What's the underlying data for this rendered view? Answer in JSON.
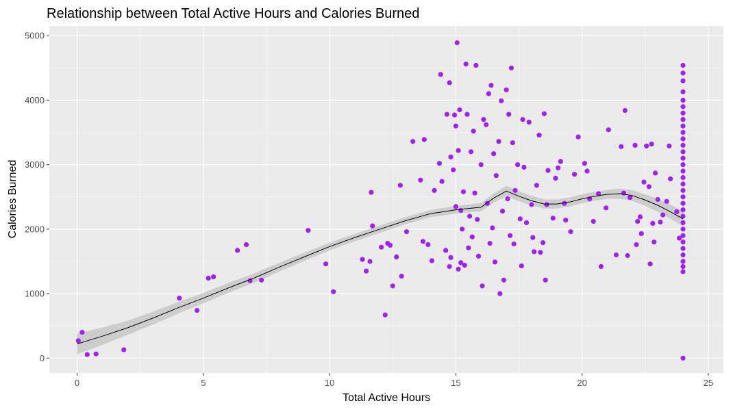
{
  "chart_data": {
    "type": "scatter",
    "title": "Relationship between Total Active Hours and Calories Burned",
    "xlabel": "Total Active Hours",
    "ylabel": "Calories Burned",
    "xlim": [
      -1.1,
      25.6
    ],
    "ylim": [
      -230,
      5150
    ],
    "x_ticks": [
      0,
      5,
      10,
      15,
      20,
      25
    ],
    "y_ticks": [
      0,
      1000,
      2000,
      3000,
      4000,
      5000
    ],
    "grid": true,
    "legend": "none",
    "point_color": "#a020f0",
    "panel_color": "#ebebeb",
    "smooth_color": "#000000",
    "band_color": "#c8c8c8",
    "points": [
      [
        0.05,
        270
      ],
      [
        0.2,
        400
      ],
      [
        0.4,
        55
      ],
      [
        0.75,
        65
      ],
      [
        1.85,
        130
      ],
      [
        4.05,
        930
      ],
      [
        4.75,
        740
      ],
      [
        5.2,
        1240
      ],
      [
        5.4,
        1260
      ],
      [
        6.35,
        1670
      ],
      [
        6.7,
        1760
      ],
      [
        6.85,
        1200
      ],
      [
        7.3,
        1210
      ],
      [
        9.15,
        1980
      ],
      [
        9.85,
        1460
      ],
      [
        10.15,
        1030
      ],
      [
        11.3,
        1530
      ],
      [
        11.45,
        1350
      ],
      [
        11.6,
        1500
      ],
      [
        11.65,
        2570
      ],
      [
        11.7,
        2050
      ],
      [
        12.05,
        1720
      ],
      [
        12.2,
        670
      ],
      [
        12.3,
        1780
      ],
      [
        12.4,
        1750
      ],
      [
        12.5,
        1120
      ],
      [
        12.65,
        1570
      ],
      [
        12.8,
        2680
      ],
      [
        12.85,
        1270
      ],
      [
        13.05,
        1960
      ],
      [
        13.3,
        3360
      ],
      [
        13.6,
        2760
      ],
      [
        13.7,
        1810
      ],
      [
        13.75,
        3390
      ],
      [
        13.9,
        1760
      ],
      [
        14.05,
        1510
      ],
      [
        14.15,
        2600
      ],
      [
        14.35,
        3020
      ],
      [
        14.45,
        2740
      ],
      [
        14.4,
        4400
      ],
      [
        14.6,
        1670
      ],
      [
        14.65,
        3780
      ],
      [
        14.75,
        1420
      ],
      [
        14.75,
        4270
      ],
      [
        14.8,
        3120
      ],
      [
        14.8,
        1560
      ],
      [
        14.9,
        2920
      ],
      [
        14.95,
        3770
      ],
      [
        15.0,
        3600
      ],
      [
        15.0,
        2350
      ],
      [
        15.05,
        4890
      ],
      [
        15.1,
        1380
      ],
      [
        15.1,
        3220
      ],
      [
        15.15,
        3850
      ],
      [
        15.2,
        1480
      ],
      [
        15.2,
        2290
      ],
      [
        15.25,
        2000
      ],
      [
        15.3,
        2580
      ],
      [
        15.35,
        1440
      ],
      [
        15.4,
        4560
      ],
      [
        15.45,
        3780
      ],
      [
        15.5,
        1710
      ],
      [
        15.55,
        2200
      ],
      [
        15.6,
        3200
      ],
      [
        15.65,
        1880
      ],
      [
        15.7,
        3520
      ],
      [
        15.75,
        2560
      ],
      [
        15.8,
        4540
      ],
      [
        15.85,
        2150
      ],
      [
        15.9,
        1580
      ],
      [
        16.0,
        3000
      ],
      [
        16.05,
        1120
      ],
      [
        16.1,
        3700
      ],
      [
        16.2,
        3620
      ],
      [
        16.25,
        2400
      ],
      [
        16.3,
        4100
      ],
      [
        16.35,
        1780
      ],
      [
        16.4,
        4230
      ],
      [
        16.45,
        2020
      ],
      [
        16.5,
        3170
      ],
      [
        16.55,
        1490
      ],
      [
        16.6,
        2830
      ],
      [
        16.7,
        3360
      ],
      [
        16.75,
        1000
      ],
      [
        16.8,
        3990
      ],
      [
        16.85,
        2280
      ],
      [
        16.9,
        1210
      ],
      [
        17.0,
        4160
      ],
      [
        17.05,
        2470
      ],
      [
        17.1,
        3780
      ],
      [
        17.15,
        1900
      ],
      [
        17.2,
        4500
      ],
      [
        17.25,
        3340
      ],
      [
        17.3,
        1770
      ],
      [
        17.35,
        2600
      ],
      [
        17.45,
        3000
      ],
      [
        17.55,
        2160
      ],
      [
        17.6,
        1430
      ],
      [
        17.65,
        3700
      ],
      [
        17.7,
        2960
      ],
      [
        17.8,
        2100
      ],
      [
        17.9,
        3660
      ],
      [
        18.0,
        2380
      ],
      [
        18.05,
        1870
      ],
      [
        18.1,
        1650
      ],
      [
        18.2,
        2680
      ],
      [
        18.3,
        3460
      ],
      [
        18.35,
        1640
      ],
      [
        18.45,
        1790
      ],
      [
        18.5,
        3790
      ],
      [
        18.55,
        1210
      ],
      [
        18.6,
        2380
      ],
      [
        18.65,
        2910
      ],
      [
        18.85,
        2170
      ],
      [
        18.95,
        2790
      ],
      [
        19.05,
        2950
      ],
      [
        19.15,
        3050
      ],
      [
        19.3,
        2400
      ],
      [
        19.35,
        2140
      ],
      [
        19.55,
        1960
      ],
      [
        19.7,
        2850
      ],
      [
        19.85,
        3430
      ],
      [
        20.1,
        3020
      ],
      [
        20.2,
        2900
      ],
      [
        20.3,
        2470
      ],
      [
        20.45,
        2120
      ],
      [
        20.65,
        2550
      ],
      [
        20.75,
        1420
      ],
      [
        20.95,
        2330
      ],
      [
        21.05,
        3540
      ],
      [
        21.35,
        1600
      ],
      [
        21.55,
        3280
      ],
      [
        21.65,
        2560
      ],
      [
        21.7,
        3840
      ],
      [
        21.8,
        1590
      ],
      [
        21.9,
        2490
      ],
      [
        22.1,
        3300
      ],
      [
        22.15,
        1760
      ],
      [
        22.2,
        2120
      ],
      [
        22.3,
        2190
      ],
      [
        22.35,
        1930
      ],
      [
        22.45,
        2730
      ],
      [
        22.55,
        3290
      ],
      [
        22.65,
        2660
      ],
      [
        22.7,
        1460
      ],
      [
        22.75,
        3320
      ],
      [
        22.8,
        2090
      ],
      [
        22.85,
        1800
      ],
      [
        22.9,
        2870
      ],
      [
        23.0,
        2460
      ],
      [
        23.1,
        2110
      ],
      [
        23.2,
        2220
      ],
      [
        23.35,
        2430
      ],
      [
        23.45,
        3290
      ],
      [
        23.5,
        2780
      ],
      [
        23.75,
        2270
      ],
      [
        23.85,
        1860
      ],
      [
        24,
        0
      ],
      [
        24,
        1340
      ],
      [
        24,
        1420
      ],
      [
        24,
        1500
      ],
      [
        24,
        1600
      ],
      [
        24,
        1700
      ],
      [
        24,
        1800
      ],
      [
        24,
        1900
      ],
      [
        24,
        2000
      ],
      [
        24,
        2100
      ],
      [
        24,
        2200
      ],
      [
        24,
        2300
      ],
      [
        24,
        2400
      ],
      [
        24,
        2500
      ],
      [
        24,
        2600
      ],
      [
        24,
        2700
      ],
      [
        24,
        2800
      ],
      [
        24,
        2900
      ],
      [
        24,
        3000
      ],
      [
        24,
        3100
      ],
      [
        24,
        3200
      ],
      [
        24,
        3300
      ],
      [
        24,
        3400
      ],
      [
        24,
        3500
      ],
      [
        24,
        3600
      ],
      [
        24,
        3700
      ],
      [
        24,
        3800
      ],
      [
        24,
        3900
      ],
      [
        24,
        4000
      ],
      [
        24,
        4130
      ],
      [
        24,
        4300
      ],
      [
        24,
        4420
      ],
      [
        24,
        4540
      ]
    ],
    "smooth": [
      [
        0,
        220
      ],
      [
        1,
        340
      ],
      [
        2,
        470
      ],
      [
        3,
        620
      ],
      [
        4,
        780
      ],
      [
        5,
        930
      ],
      [
        6,
        1090
      ],
      [
        7,
        1240
      ],
      [
        8,
        1410
      ],
      [
        9,
        1570
      ],
      [
        10,
        1730
      ],
      [
        11,
        1870
      ],
      [
        12,
        2000
      ],
      [
        13,
        2130
      ],
      [
        14,
        2240
      ],
      [
        15,
        2300
      ],
      [
        16,
        2340
      ],
      [
        16.5,
        2480
      ],
      [
        17,
        2590
      ],
      [
        17.5,
        2510
      ],
      [
        18,
        2440
      ],
      [
        18.5,
        2390
      ],
      [
        19,
        2390
      ],
      [
        19.5,
        2420
      ],
      [
        20,
        2470
      ],
      [
        20.5,
        2510
      ],
      [
        21,
        2540
      ],
      [
        21.5,
        2550
      ],
      [
        22,
        2520
      ],
      [
        22.5,
        2450
      ],
      [
        23,
        2370
      ],
      [
        23.5,
        2270
      ],
      [
        24,
        2160
      ]
    ],
    "band_halfwidth": [
      [
        0,
        160
      ],
      [
        2,
        110
      ],
      [
        5,
        80
      ],
      [
        10,
        60
      ],
      [
        14,
        55
      ],
      [
        16,
        65
      ],
      [
        17,
        80
      ],
      [
        19,
        70
      ],
      [
        21,
        70
      ],
      [
        22.5,
        90
      ],
      [
        24,
        120
      ]
    ]
  }
}
